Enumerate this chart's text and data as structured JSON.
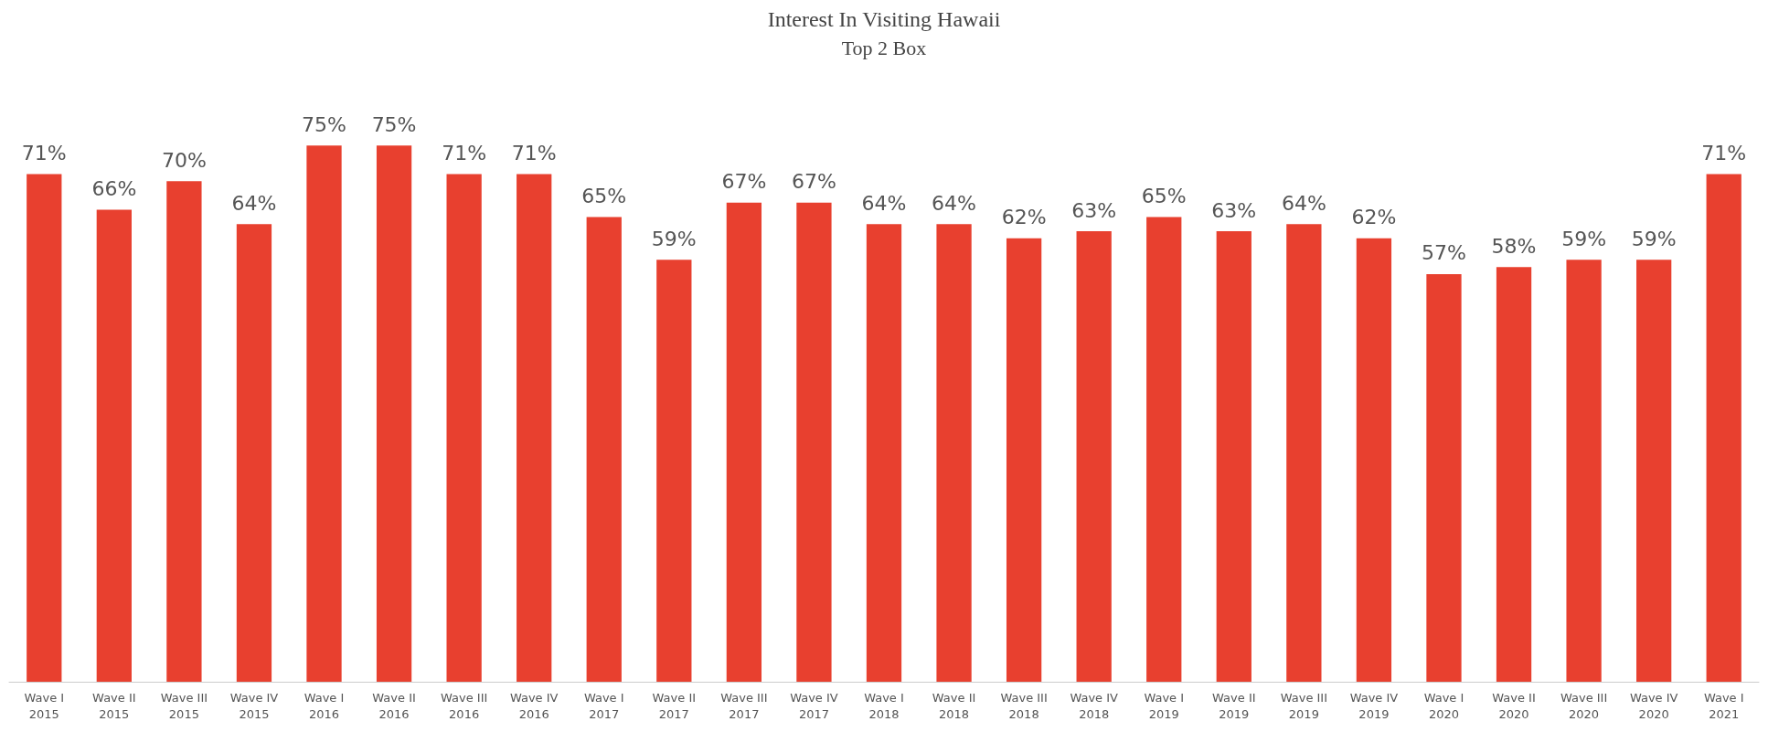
{
  "chart_data": {
    "type": "bar",
    "title": "Interest In Visiting Hawaii",
    "subtitle": "Top 2 Box",
    "categories": [
      "Wave I\n2015",
      "Wave II\n2015",
      "Wave III\n2015",
      "Wave IV\n2015",
      "Wave I\n2016",
      "Wave II\n2016",
      "Wave III\n2016",
      "Wave IV\n2016",
      "Wave I\n2017",
      "Wave II\n2017",
      "Wave III\n2017",
      "Wave IV\n2017",
      "Wave I\n2018",
      "Wave II\n2018",
      "Wave III\n2018",
      "Wave IV\n2018",
      "Wave I\n2019",
      "Wave II\n2019",
      "Wave III\n2019",
      "Wave IV\n2019",
      "Wave I\n2020",
      "Wave II\n2020",
      "Wave III\n2020",
      "Wave IV\n2020",
      "Wave I\n2021"
    ],
    "values": [
      71,
      66,
      70,
      64,
      75,
      75,
      71,
      71,
      65,
      59,
      67,
      67,
      64,
      64,
      62,
      63,
      65,
      63,
      64,
      62,
      57,
      58,
      59,
      59,
      71
    ],
    "value_labels": [
      "71%",
      "66%",
      "70%",
      "64%",
      "75%",
      "75%",
      "71%",
      "71%",
      "65%",
      "59%",
      "67%",
      "67%",
      "64%",
      "64%",
      "62%",
      "63%",
      "65%",
      "63%",
      "64%",
      "62%",
      "57%",
      "58%",
      "59%",
      "59%",
      "71%"
    ],
    "color": "#e8402f"
  }
}
